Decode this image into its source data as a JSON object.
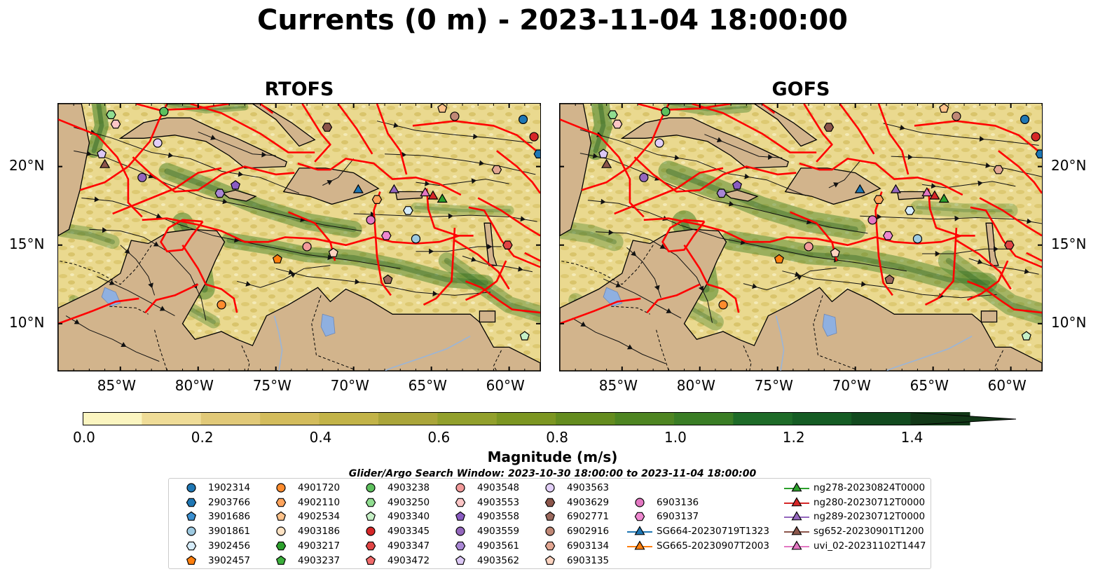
{
  "title": "Currents (0 m) - 2023-11-04 18:00:00",
  "panels": [
    {
      "title": "RTOFS"
    },
    {
      "title": "GOFS"
    }
  ],
  "map_extent": {
    "lon": [
      -89,
      -58
    ],
    "lat": [
      7,
      24
    ]
  },
  "x_ticks": [
    "85°W",
    "80°W",
    "75°W",
    "70°W",
    "65°W",
    "60°W"
  ],
  "y_ticks": [
    "20°N",
    "15°N",
    "10°N"
  ],
  "colors": {
    "land": "#d2b48c",
    "sea_low": "#f6efb5",
    "sea_high": "#1f4f1f",
    "boundaries": "#ff0000",
    "lakes": "#8fb0e0"
  },
  "colorbar": {
    "label": "Magnitude (m/s)",
    "ticks": [
      "0.0",
      "0.2",
      "0.4",
      "0.6",
      "0.8",
      "1.0",
      "1.2",
      "1.4"
    ],
    "min": 0.0,
    "max": 1.5,
    "step": 0.1,
    "colors": [
      "#fbf5c0",
      "#efdc97",
      "#e1c978",
      "#d3bc5c",
      "#c2b348",
      "#aaa53a",
      "#92a02c",
      "#7c9622",
      "#648c1f",
      "#4e8522",
      "#3a7d25",
      "#1e6b28",
      "#155c24",
      "#124a1f",
      "#123817"
    ]
  },
  "search_window": "Glider/Argo Search Window: 2023-10-30 18:00:00 to 2023-11-04 18:00:00",
  "legend": [
    {
      "label": "1902314",
      "marker": "circle",
      "color": "#1f77b4"
    },
    {
      "label": "2903766",
      "marker": "hexagon",
      "color": "#1f77b4"
    },
    {
      "label": "3901686",
      "marker": "pentagon",
      "color": "#3b8fd0"
    },
    {
      "label": "3901861",
      "marker": "circle",
      "color": "#9ecae1"
    },
    {
      "label": "3902456",
      "marker": "hexagon",
      "color": "#d6ecfa"
    },
    {
      "label": "3902457",
      "marker": "pentagon",
      "color": "#ff7f0e"
    },
    {
      "label": "4901720",
      "marker": "circle",
      "color": "#ff8c2e"
    },
    {
      "label": "4902110",
      "marker": "hexagon",
      "color": "#ffa45c"
    },
    {
      "label": "4902534",
      "marker": "pentagon",
      "color": "#ffc28a"
    },
    {
      "label": "4903186",
      "marker": "circle",
      "color": "#ffe3c4"
    },
    {
      "label": "4903217",
      "marker": "hexagon",
      "color": "#2ca02c"
    },
    {
      "label": "4903237",
      "marker": "pentagon",
      "color": "#3cb03c"
    },
    {
      "label": "4903238",
      "marker": "circle",
      "color": "#5dc05d"
    },
    {
      "label": "4903250",
      "marker": "hexagon",
      "color": "#90dd90"
    },
    {
      "label": "4903340",
      "marker": "pentagon",
      "color": "#c6f0c6"
    },
    {
      "label": "4903345",
      "marker": "circle",
      "color": "#d62728"
    },
    {
      "label": "4903347",
      "marker": "hexagon",
      "color": "#e04545"
    },
    {
      "label": "4903472",
      "marker": "pentagon",
      "color": "#f06a6a"
    },
    {
      "label": "4903548",
      "marker": "circle",
      "color": "#f29a9a"
    },
    {
      "label": "4903553",
      "marker": "hexagon",
      "color": "#fcc6c6"
    },
    {
      "label": "4903558",
      "marker": "pentagon",
      "color": "#8a5cc2"
    },
    {
      "label": "4903559",
      "marker": "circle",
      "color": "#9467bd"
    },
    {
      "label": "4903561",
      "marker": "hexagon",
      "color": "#a987d4"
    },
    {
      "label": "4903562",
      "marker": "pentagon",
      "color": "#dcc8f5"
    },
    {
      "label": "4903563",
      "marker": "circle",
      "color": "#e2cff8"
    },
    {
      "label": "4903629",
      "marker": "hexagon",
      "color": "#8c564b"
    },
    {
      "label": "6902771",
      "marker": "pentagon",
      "color": "#9c6a5e"
    },
    {
      "label": "6902916",
      "marker": "circle",
      "color": "#c08876"
    },
    {
      "label": "6903134",
      "marker": "hexagon",
      "color": "#e2a692"
    },
    {
      "label": "6903135",
      "marker": "pentagon",
      "color": "#fcd3c0"
    },
    {
      "label": "6903136",
      "marker": "circle",
      "color": "#e377c2"
    },
    {
      "label": "6903137",
      "marker": "hexagon",
      "color": "#ee88d0"
    },
    {
      "label": "SG664-20230719T1323",
      "marker": "triangle-line",
      "color": "#1f77b4"
    },
    {
      "label": "SG665-20230907T2003",
      "marker": "triangle-line",
      "color": "#ff7f0e"
    },
    {
      "label": "ng278-20230824T0000",
      "marker": "triangle-line",
      "color": "#2ca02c"
    },
    {
      "label": "ng280-20230712T0000",
      "marker": "triangle-line",
      "color": "#d62728"
    },
    {
      "label": "ng289-20230712T0000",
      "marker": "triangle-line",
      "color": "#9467bd"
    },
    {
      "label": "sg652-20230901T1200",
      "marker": "triangle-line",
      "color": "#8c564b"
    },
    {
      "label": "uvi_02-20231102T1447",
      "marker": "triangle-line",
      "color": "#e377c2"
    }
  ],
  "observations": [
    {
      "id": "1902314",
      "lon": -59.1,
      "lat": 23.0
    },
    {
      "id": "2903766",
      "lon": -58.1,
      "lat": 20.8
    },
    {
      "id": "3901861",
      "lon": -66.0,
      "lat": 15.4
    },
    {
      "id": "3902456",
      "lon": -66.5,
      "lat": 17.2
    },
    {
      "id": "3902457",
      "lon": -74.9,
      "lat": 14.1
    },
    {
      "id": "4901720",
      "lon": -78.5,
      "lat": 11.2
    },
    {
      "id": "4902110",
      "lon": -68.5,
      "lat": 17.9
    },
    {
      "id": "4902534",
      "lon": -64.3,
      "lat": 23.7
    },
    {
      "id": "4903238",
      "lon": -82.2,
      "lat": 23.5
    },
    {
      "id": "4903250",
      "lon": -85.6,
      "lat": 23.3
    },
    {
      "id": "4903340",
      "lon": -59.0,
      "lat": 9.2
    },
    {
      "id": "4903345",
      "lon": -58.4,
      "lat": 21.9
    },
    {
      "id": "4903347",
      "lon": -60.1,
      "lat": 15.0
    },
    {
      "id": "4903548",
      "lon": -73.0,
      "lat": 14.9
    },
    {
      "id": "4903553",
      "lon": -85.3,
      "lat": 22.7
    },
    {
      "id": "4903558",
      "lon": -77.6,
      "lat": 18.8
    },
    {
      "id": "4903559",
      "lon": -83.6,
      "lat": 19.3
    },
    {
      "id": "4903561",
      "lon": -78.6,
      "lat": 18.3
    },
    {
      "id": "4903562",
      "lon": -86.2,
      "lat": 20.8
    },
    {
      "id": "4903563",
      "lon": -82.6,
      "lat": 21.5
    },
    {
      "id": "4903629",
      "lon": -71.7,
      "lat": 22.5
    },
    {
      "id": "6902771",
      "lon": -67.8,
      "lat": 12.8
    },
    {
      "id": "6902916",
      "lon": -63.5,
      "lat": 23.2
    },
    {
      "id": "6903134",
      "lon": -60.8,
      "lat": 19.8
    },
    {
      "id": "6903135",
      "lon": -71.3,
      "lat": 14.5
    },
    {
      "id": "6903136",
      "lon": -68.9,
      "lat": 16.6
    },
    {
      "id": "6903137",
      "lon": -67.9,
      "lat": 15.6
    },
    {
      "id": "SG664-20230719T1323",
      "lon": -69.7,
      "lat": 18.5
    },
    {
      "id": "ng278-20230824T0000",
      "lon": -64.3,
      "lat": 17.9
    },
    {
      "id": "ng280-20230712T0000",
      "lon": -64.9,
      "lat": 18.1
    },
    {
      "id": "ng289-20230712T0000",
      "lon": -67.4,
      "lat": 18.5
    },
    {
      "id": "sg652-20230901T1200",
      "lon": -86.0,
      "lat": 20.1
    },
    {
      "id": "uvi_02-20231102T1447",
      "lon": -65.4,
      "lat": 18.3
    }
  ]
}
